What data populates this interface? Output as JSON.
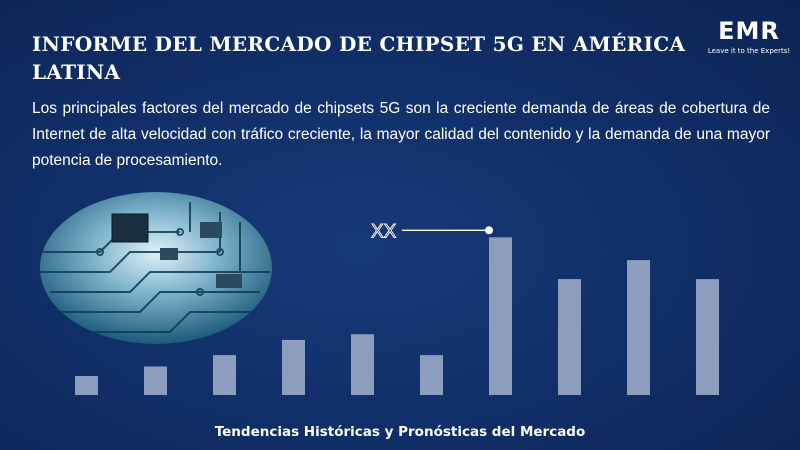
{
  "header": {
    "title": "INFORME DEL MERCADO DE CHIPSET 5G EN AMÉRICA LATINA",
    "description": "Los principales factores del mercado de chipsets 5G son la creciente demanda de áreas de cobertura de Internet de alta velocidad con tráfico creciente, la mayor calidad del contenido y la demanda de una mayor potencia de procesamiento."
  },
  "logo": {
    "text": "EMR",
    "tagline": "Leave it to the Experts!"
  },
  "footer": {
    "caption": "Tendencias Históricas y Pronósticas del Mercado"
  },
  "colors": {
    "background": "#0f2a5e",
    "bar": "#8c9dbd",
    "text": "#ffffff"
  },
  "icons": [
    "circuit-board-image",
    "emr-logo-icon"
  ],
  "chart_data": {
    "type": "bar",
    "categories": [
      "",
      "",
      "",
      "",
      "",
      "",
      "",
      "",
      "",
      ""
    ],
    "values": [
      1.0,
      1.5,
      2.1,
      2.9,
      3.2,
      2.1,
      8.3,
      6.1,
      7.1,
      6.1
    ],
    "annotation": {
      "label": "XX",
      "target_index": 6
    },
    "ylim": [
      0,
      9
    ],
    "grid": false,
    "legend": "none"
  }
}
